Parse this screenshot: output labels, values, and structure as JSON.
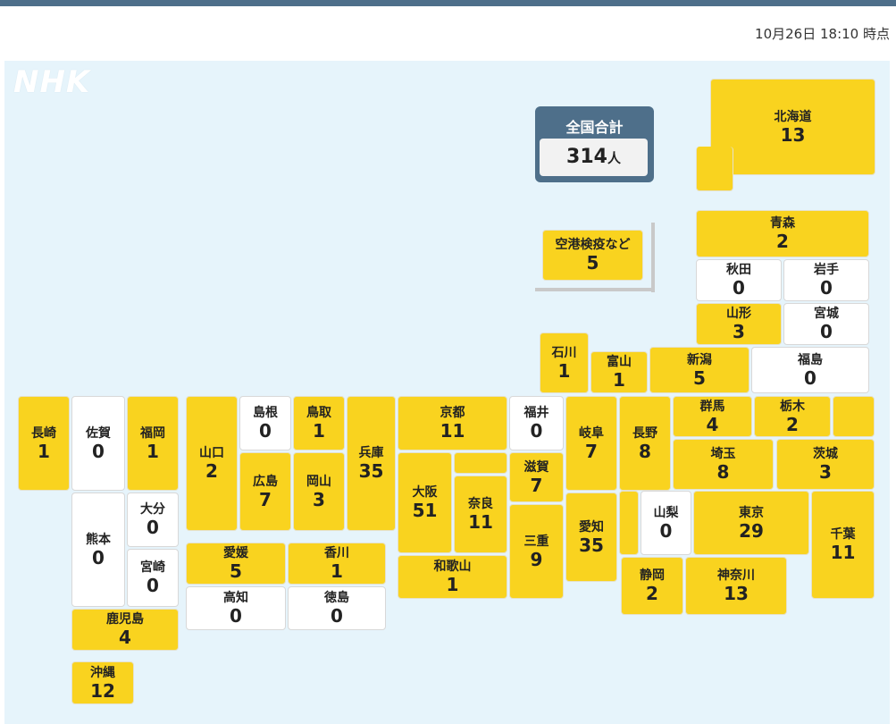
{
  "timestamp": "10月26日 18:10 時点",
  "logo": "NHK",
  "total": {
    "label": "全国合計",
    "value": "314",
    "unit": "人"
  },
  "colors": {
    "positive": "#f9d31f",
    "zero": "#ffffff",
    "header": "#4e6f8a",
    "map_bg": "#e6f4fb"
  },
  "prefectures": {
    "airport": {
      "name": "空港検疫など",
      "value": "5"
    },
    "hokkaido": {
      "name": "北海道",
      "value": "13"
    },
    "aomori": {
      "name": "青森",
      "value": "2"
    },
    "akita": {
      "name": "秋田",
      "value": "0"
    },
    "iwate": {
      "name": "岩手",
      "value": "0"
    },
    "yamagata": {
      "name": "山形",
      "value": "3"
    },
    "miyagi": {
      "name": "宮城",
      "value": "0"
    },
    "ishikawa": {
      "name": "石川",
      "value": "1"
    },
    "toyama": {
      "name": "富山",
      "value": "1"
    },
    "niigata": {
      "name": "新潟",
      "value": "5"
    },
    "fukushima": {
      "name": "福島",
      "value": "0"
    },
    "nagasaki": {
      "name": "長崎",
      "value": "1"
    },
    "saga": {
      "name": "佐賀",
      "value": "0"
    },
    "fukuoka": {
      "name": "福岡",
      "value": "1"
    },
    "yamaguchi": {
      "name": "山口",
      "value": "2"
    },
    "shimane": {
      "name": "島根",
      "value": "0"
    },
    "tottori": {
      "name": "鳥取",
      "value": "1"
    },
    "hyogo": {
      "name": "兵庫",
      "value": "35"
    },
    "kyoto": {
      "name": "京都",
      "value": "11"
    },
    "fukui": {
      "name": "福井",
      "value": "0"
    },
    "gifu": {
      "name": "岐阜",
      "value": "7"
    },
    "nagano": {
      "name": "長野",
      "value": "8"
    },
    "gunma": {
      "name": "群馬",
      "value": "4"
    },
    "tochigi": {
      "name": "栃木",
      "value": "2"
    },
    "ibaraki": {
      "name": "茨城",
      "value": "3"
    },
    "hiroshima": {
      "name": "広島",
      "value": "7"
    },
    "okayama": {
      "name": "岡山",
      "value": "3"
    },
    "osaka": {
      "name": "大阪",
      "value": "51"
    },
    "nara": {
      "name": "奈良",
      "value": "11"
    },
    "shiga": {
      "name": "滋賀",
      "value": "7"
    },
    "mie": {
      "name": "三重",
      "value": "9"
    },
    "aichi": {
      "name": "愛知",
      "value": "35"
    },
    "saitama": {
      "name": "埼玉",
      "value": "8"
    },
    "yamanashi": {
      "name": "山梨",
      "value": "0"
    },
    "tokyo": {
      "name": "東京",
      "value": "29"
    },
    "chiba": {
      "name": "千葉",
      "value": "11"
    },
    "kumamoto": {
      "name": "熊本",
      "value": "0"
    },
    "oita": {
      "name": "大分",
      "value": "0"
    },
    "miyazaki": {
      "name": "宮崎",
      "value": "0"
    },
    "ehime": {
      "name": "愛媛",
      "value": "5"
    },
    "kagawa": {
      "name": "香川",
      "value": "1"
    },
    "kochi": {
      "name": "高知",
      "value": "0"
    },
    "tokushima": {
      "name": "徳島",
      "value": "0"
    },
    "wakayama": {
      "name": "和歌山",
      "value": "1"
    },
    "shizuoka": {
      "name": "静岡",
      "value": "2"
    },
    "kanagawa": {
      "name": "神奈川",
      "value": "13"
    },
    "kagoshima": {
      "name": "鹿児島",
      "value": "4"
    },
    "okinawa": {
      "name": "沖縄",
      "value": "12"
    }
  }
}
